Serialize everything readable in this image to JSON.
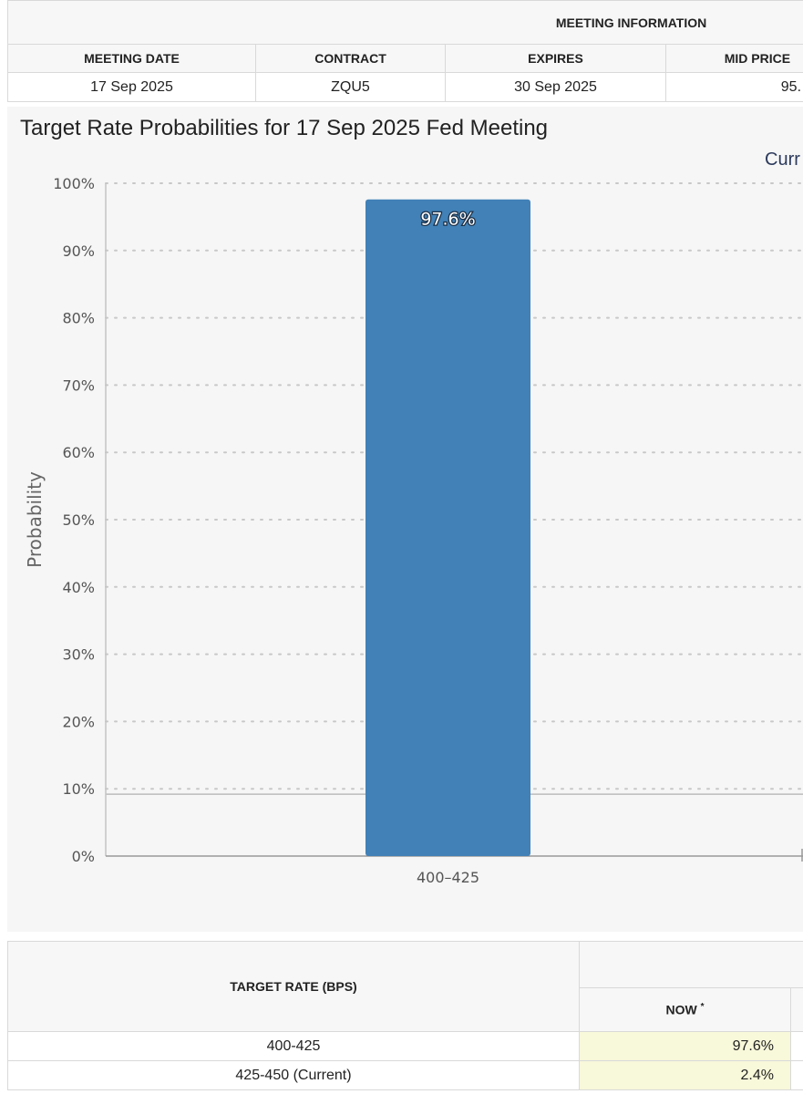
{
  "meeting_info": {
    "title": "MEETING INFORMATION",
    "columns": [
      "MEETING DATE",
      "CONTRACT",
      "EXPIRES",
      "MID PRICE"
    ],
    "values": [
      "17 Sep 2025",
      "ZQU5",
      "30 Sep 2025",
      "95."
    ]
  },
  "chart_data": {
    "type": "bar",
    "title": "Target Rate Probabilities for 17 Sep 2025 Fed Meeting",
    "legend": [
      "Curr"
    ],
    "ylabel": "Probability",
    "xlabel": "",
    "categories": [
      "400-425"
    ],
    "category_labels": [
      "400–425"
    ],
    "values": [
      97.6
    ],
    "data_labels": [
      "97.6%"
    ],
    "ylim": [
      0,
      100
    ],
    "yticks": [
      0,
      10,
      20,
      30,
      40,
      50,
      60,
      70,
      80,
      90,
      100
    ],
    "ytick_labels": [
      "0%",
      "10%",
      "20%",
      "30%",
      "40%",
      "50%",
      "60%",
      "70%",
      "80%",
      "90%",
      "100%"
    ],
    "reference_line_value": 9.2,
    "grid": true,
    "bar_color": "#4181b7"
  },
  "rate_table": {
    "header": "TARGET RATE (BPS)",
    "now_label": "NOW",
    "now_marker": "*",
    "rows": [
      {
        "rate": "400-425",
        "now": "97.6%"
      },
      {
        "rate": "425-450 (Current)",
        "now": "2.4%"
      }
    ]
  }
}
